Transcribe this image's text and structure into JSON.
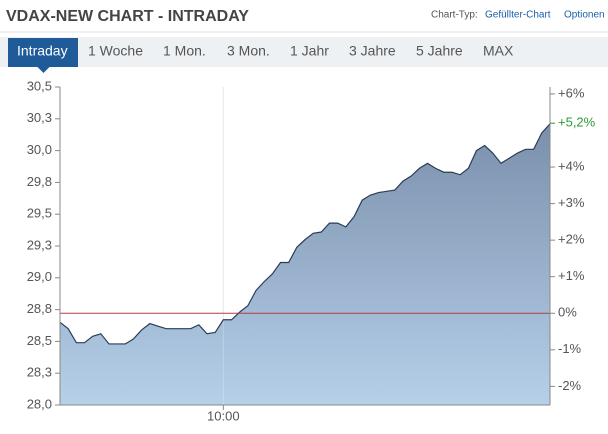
{
  "header": {
    "title": "VDAX-NEW CHART - INTRADAY",
    "chart_type_label": "Chart-Typ:",
    "chart_type": "Gefüllter-Chart",
    "options": "Optionen"
  },
  "tabs": [
    "Intraday",
    "1 Woche",
    "1 Mon.",
    "3 Mon.",
    "1 Jahr",
    "3 Jahre",
    "5 Jahre",
    "MAX"
  ],
  "active_tab": 0,
  "chart_data": {
    "type": "area",
    "x": [
      "09:00",
      "09:03",
      "09:06",
      "09:09",
      "09:12",
      "09:15",
      "09:18",
      "09:21",
      "09:24",
      "09:27",
      "09:30",
      "09:33",
      "09:36",
      "09:39",
      "09:42",
      "09:45",
      "09:48",
      "09:51",
      "09:54",
      "09:57",
      "10:00",
      "10:03",
      "10:06",
      "10:09",
      "10:12",
      "10:15",
      "10:18",
      "10:21",
      "10:24",
      "10:27",
      "10:30",
      "10:33",
      "10:36",
      "10:39",
      "10:42",
      "10:45",
      "10:48",
      "10:51",
      "10:54",
      "10:57",
      "11:00",
      "11:03",
      "11:06",
      "11:09",
      "11:12",
      "11:15",
      "11:18",
      "11:21",
      "11:24",
      "11:27",
      "11:30",
      "11:33",
      "11:36",
      "11:39",
      "11:42",
      "11:45",
      "11:48",
      "11:51",
      "11:54",
      "11:57",
      "12:00"
    ],
    "values": [
      28.65,
      28.6,
      28.49,
      28.49,
      28.54,
      28.56,
      28.48,
      28.48,
      28.48,
      28.52,
      28.59,
      28.64,
      28.62,
      28.6,
      28.6,
      28.6,
      28.6,
      28.63,
      28.56,
      28.57,
      28.67,
      28.67,
      28.73,
      28.78,
      28.9,
      28.97,
      29.03,
      29.12,
      29.12,
      29.24,
      29.3,
      29.35,
      29.36,
      29.43,
      29.43,
      29.4,
      29.48,
      29.61,
      29.65,
      29.67,
      29.68,
      29.69,
      29.76,
      29.8,
      29.86,
      29.9,
      29.86,
      29.83,
      29.83,
      29.81,
      29.86,
      30.0,
      30.04,
      29.98,
      29.9,
      29.94,
      29.98,
      30.01,
      30.01,
      30.14,
      30.21
    ],
    "color": "#2b3d57",
    "fill_colors": [
      "#7a8fab",
      "#b6d0ea"
    ],
    "xlim": [
      "09:00",
      "12:00"
    ],
    "xticks": [
      "10:00"
    ],
    "ylim": [
      28,
      30.5
    ],
    "yticks": [
      {
        "value": 28,
        "label": "28,0"
      },
      {
        "value": 28.25,
        "label": "28,3"
      },
      {
        "value": 28.5,
        "label": "28,5"
      },
      {
        "value": 28.75,
        "label": "28,8"
      },
      {
        "value": 29,
        "label": "29,0"
      },
      {
        "value": 29.25,
        "label": "29,3"
      },
      {
        "value": 29.5,
        "label": "29,5"
      },
      {
        "value": 29.75,
        "label": "29,8"
      },
      {
        "value": 30,
        "label": "30,0"
      },
      {
        "value": 30.25,
        "label": "30,3"
      },
      {
        "value": 30.5,
        "label": "30,5"
      }
    ],
    "y2lim": [
      -2.51,
      6.19
    ],
    "y2ticks": [
      {
        "value": 6,
        "label": "+6%"
      },
      {
        "value": 4,
        "label": "+4%"
      },
      {
        "value": 3,
        "label": "+3%"
      },
      {
        "value": 2,
        "label": "+2%"
      },
      {
        "value": 1,
        "label": "+1%"
      },
      {
        "value": 0,
        "label": "0%"
      },
      {
        "value": -1,
        "label": "-1%"
      },
      {
        "value": -2,
        "label": "-2%"
      }
    ],
    "reference_line": {
      "axis": "y2",
      "value": 0,
      "color": "#b04040"
    },
    "annotation": {
      "text": "+5,2%",
      "value": 5.2,
      "color": "#2e9a36"
    }
  }
}
